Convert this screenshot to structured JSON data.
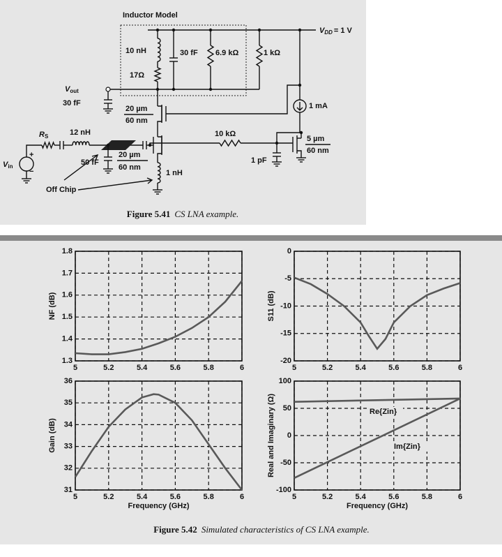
{
  "figure_5_41": {
    "box_title": "Inductor Model",
    "vdd": {
      "symbol": "V",
      "subscript": "DD",
      "value": "= 1 V"
    },
    "l_model": "10 nH",
    "c_model": "30 fF",
    "r_parallel": "6.9 kΩ",
    "r_model": "17Ω",
    "r_load": "1 kΩ",
    "vout": {
      "symbol": "V",
      "subscript": "out"
    },
    "c_out": "30 fF",
    "m2_w": "20 µm",
    "m2_l": "60 nm",
    "i_bias": "1 mA",
    "rs": {
      "symbol": "R",
      "subscript": "S"
    },
    "l_g": "12 nH",
    "r_bias": "10 kΩ",
    "m3_w": "5 µm",
    "m3_l": "60 nm",
    "vin": {
      "symbol": "V",
      "subscript": "in"
    },
    "plus": "+",
    "minus": "−",
    "c_pad": "50 fF",
    "m1_w": "20 µm",
    "m1_l": "60 nm",
    "c_bias": "1 pF",
    "l_s": "1 nH",
    "off_chip": "Off Chip",
    "caption": {
      "label": "Figure 5.41",
      "text": "CS LNA example."
    }
  },
  "chart_data": [
    {
      "type": "line",
      "ylabel": "NF (dB)",
      "color": "#595959",
      "grid": true,
      "x": [
        5,
        5.1,
        5.2,
        5.3,
        5.4,
        5.5,
        5.6,
        5.7,
        5.8,
        5.9,
        6
      ],
      "values": [
        1.335,
        1.33,
        1.33,
        1.34,
        1.355,
        1.38,
        1.41,
        1.45,
        1.5,
        1.57,
        1.665
      ],
      "xlim": [
        5,
        6
      ],
      "xticks": [
        5,
        5.2,
        5.4,
        5.6,
        5.8,
        6
      ],
      "ylim": [
        1.3,
        1.8
      ],
      "yticks": [
        1.3,
        1.4,
        1.5,
        1.6,
        1.7,
        1.8
      ]
    },
    {
      "type": "line",
      "ylabel": "S11 (dB)",
      "color": "#595959",
      "grid": true,
      "x": [
        5,
        5.1,
        5.2,
        5.3,
        5.4,
        5.45,
        5.5,
        5.55,
        5.6,
        5.7,
        5.8,
        5.9,
        6
      ],
      "values": [
        -4.8,
        -6,
        -7.8,
        -10,
        -13,
        -15.5,
        -17.8,
        -16,
        -13,
        -10,
        -8,
        -6.8,
        -5.8
      ],
      "xlim": [
        5,
        6
      ],
      "xticks": [
        5,
        5.2,
        5.4,
        5.6,
        5.8,
        6
      ],
      "ylim": [
        -20,
        0
      ],
      "yticks": [
        -20,
        -15,
        -10,
        -5,
        0
      ]
    },
    {
      "type": "line",
      "ylabel": "Gain (dB)",
      "xlabel": "Frequency (GHz)",
      "color": "#595959",
      "grid": true,
      "x": [
        5,
        5.1,
        5.2,
        5.3,
        5.4,
        5.47,
        5.5,
        5.6,
        5.7,
        5.8,
        5.9,
        6
      ],
      "values": [
        31.6,
        32.8,
        33.9,
        34.7,
        35.25,
        35.4,
        35.38,
        35.0,
        34.2,
        33.1,
        32.0,
        31.0
      ],
      "xlim": [
        5,
        6
      ],
      "xticks": [
        5,
        5.2,
        5.4,
        5.6,
        5.8,
        6
      ],
      "ylim": [
        31,
        36
      ],
      "yticks": [
        31,
        32,
        33,
        34,
        35,
        36
      ]
    },
    {
      "type": "line",
      "ylabel": "Real and Imaginary (Ω)",
      "xlabel": "Frequency (GHz)",
      "grid": true,
      "x": [
        5,
        5.5,
        6
      ],
      "series": [
        {
          "name": "Re{Zin}",
          "color": "#595959",
          "values": [
            62,
            65,
            68
          ]
        },
        {
          "name": "Im{Zin}",
          "color": "#595959",
          "values": [
            -78,
            -5,
            68
          ]
        }
      ],
      "xlim": [
        5,
        6
      ],
      "xticks": [
        5,
        5.2,
        5.4,
        5.6,
        5.8,
        6
      ],
      "ylim": [
        -100,
        100
      ],
      "yticks": [
        -100,
        -50,
        0,
        50,
        100
      ]
    }
  ],
  "figure_5_42_caption": {
    "label": "Figure 5.42",
    "text": "Simulated characteristics of CS LNA example."
  }
}
